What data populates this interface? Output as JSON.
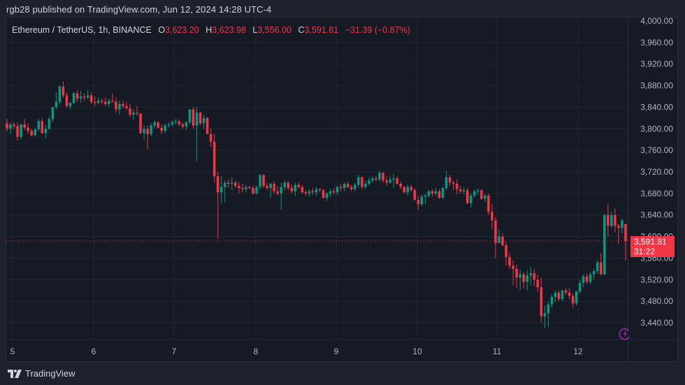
{
  "header": {
    "publisher_text": "rgb28 published on TradingView.com, Jun 12, 2024 14:28 UTC-4"
  },
  "legend": {
    "symbol": "Ethereum / TetherUS, 1h, BINANCE",
    "open_label": "O",
    "open": "3,623.20",
    "high_label": "H",
    "high": "3,623.98",
    "low_label": "L",
    "low": "3,556.00",
    "close_label": "C",
    "close": "3,591.81",
    "change": "−31.39 (−0.87%)"
  },
  "price_tag": {
    "price": "3,591.81",
    "countdown": "31:22"
  },
  "footer": {
    "brand": "TradingView"
  },
  "colors": {
    "up": "#089981",
    "down": "#f23645",
    "background": "#161a25",
    "grid": "#242733",
    "axis_text": "#b2b5be",
    "price_line": "#f23645",
    "bolt": "#9c27b0"
  },
  "chart_data": {
    "type": "candlestick",
    "title": "Ethereum / TetherUS, 1h, BINANCE",
    "xlabel": "",
    "ylabel": "",
    "ylim": [
      3420,
      4000
    ],
    "y_ticks": [
      4000,
      3960,
      3920,
      3880,
      3840,
      3800,
      3760,
      3720,
      3680,
      3640,
      3600,
      3560,
      3520,
      3480,
      3440
    ],
    "y_tick_labels": [
      "4,000.00",
      "3,960.00",
      "3,920.00",
      "3,880.00",
      "3,840.00",
      "3,800.00",
      "3,760.00",
      "3,720.00",
      "3,680.00",
      "3,640.00",
      "3,600.00",
      "3,560.00",
      "3,520.00",
      "3,480.00",
      "3,440.00"
    ],
    "x_tick_labels": [
      "5",
      "6",
      "7",
      "8",
      "9",
      "10",
      "11",
      "12"
    ],
    "last_price": 3591.81,
    "grid": true,
    "candles": [
      [
        3810,
        3818,
        3795,
        3800
      ],
      [
        3800,
        3812,
        3790,
        3808
      ],
      [
        3808,
        3812,
        3800,
        3805
      ],
      [
        3805,
        3812,
        3778,
        3785
      ],
      [
        3785,
        3810,
        3780,
        3808
      ],
      [
        3808,
        3818,
        3798,
        3802
      ],
      [
        3802,
        3810,
        3790,
        3796
      ],
      [
        3796,
        3800,
        3786,
        3788
      ],
      [
        3788,
        3802,
        3785,
        3799
      ],
      [
        3799,
        3818,
        3795,
        3814
      ],
      [
        3814,
        3820,
        3790,
        3792
      ],
      [
        3792,
        3808,
        3782,
        3800
      ],
      [
        3800,
        3822,
        3798,
        3818
      ],
      [
        3818,
        3840,
        3812,
        3840
      ],
      [
        3840,
        3868,
        3836,
        3850
      ],
      [
        3850,
        3880,
        3845,
        3878
      ],
      [
        3878,
        3888,
        3858,
        3862
      ],
      [
        3862,
        3868,
        3840,
        3842
      ],
      [
        3842,
        3850,
        3836,
        3848
      ],
      [
        3848,
        3868,
        3845,
        3866
      ],
      [
        3866,
        3872,
        3850,
        3856
      ],
      [
        3856,
        3870,
        3848,
        3860
      ],
      [
        3860,
        3866,
        3852,
        3858
      ],
      [
        3858,
        3872,
        3854,
        3862
      ],
      [
        3862,
        3868,
        3846,
        3850
      ],
      [
        3850,
        3860,
        3842,
        3848
      ],
      [
        3848,
        3858,
        3845,
        3852
      ],
      [
        3852,
        3856,
        3846,
        3850
      ],
      [
        3850,
        3858,
        3842,
        3846
      ],
      [
        3846,
        3856,
        3840,
        3852
      ],
      [
        3852,
        3866,
        3848,
        3850
      ],
      [
        3850,
        3858,
        3830,
        3836
      ],
      [
        3836,
        3852,
        3826,
        3846
      ],
      [
        3846,
        3852,
        3838,
        3842
      ],
      [
        3842,
        3850,
        3835,
        3838
      ],
      [
        3838,
        3846,
        3822,
        3826
      ],
      [
        3826,
        3836,
        3816,
        3830
      ],
      [
        3830,
        3842,
        3824,
        3828
      ],
      [
        3828,
        3830,
        3790,
        3792
      ],
      [
        3792,
        3806,
        3780,
        3800
      ],
      [
        3800,
        3806,
        3762,
        3790
      ],
      [
        3790,
        3810,
        3786,
        3806
      ],
      [
        3806,
        3816,
        3800,
        3812
      ],
      [
        3812,
        3814,
        3800,
        3802
      ],
      [
        3802,
        3808,
        3790,
        3796
      ],
      [
        3796,
        3810,
        3792,
        3806
      ],
      [
        3806,
        3812,
        3802,
        3808
      ],
      [
        3808,
        3816,
        3804,
        3812
      ],
      [
        3812,
        3818,
        3808,
        3814
      ],
      [
        3814,
        3818,
        3806,
        3808
      ],
      [
        3808,
        3812,
        3800,
        3804
      ],
      [
        3804,
        3814,
        3798,
        3812
      ],
      [
        3812,
        3830,
        3808,
        3836
      ],
      [
        3836,
        3840,
        3800,
        3806
      ],
      [
        3806,
        3840,
        3740,
        3830
      ],
      [
        3830,
        3832,
        3806,
        3810
      ],
      [
        3810,
        3826,
        3800,
        3820
      ],
      [
        3820,
        3822,
        3790,
        3790
      ],
      [
        3790,
        3800,
        3766,
        3776
      ],
      [
        3776,
        3790,
        3700,
        3712
      ],
      [
        3712,
        3720,
        3596,
        3682
      ],
      [
        3682,
        3712,
        3662,
        3692
      ],
      [
        3692,
        3704,
        3664,
        3700
      ],
      [
        3700,
        3706,
        3690,
        3698
      ],
      [
        3698,
        3710,
        3686,
        3700
      ],
      [
        3700,
        3704,
        3690,
        3694
      ],
      [
        3694,
        3702,
        3680,
        3690
      ],
      [
        3690,
        3698,
        3682,
        3688
      ],
      [
        3688,
        3696,
        3682,
        3692
      ],
      [
        3692,
        3694,
        3688,
        3690
      ],
      [
        3690,
        3694,
        3678,
        3680
      ],
      [
        3680,
        3694,
        3678,
        3692
      ],
      [
        3692,
        3716,
        3688,
        3714
      ],
      [
        3714,
        3716,
        3690,
        3694
      ],
      [
        3694,
        3700,
        3686,
        3690
      ],
      [
        3690,
        3700,
        3672,
        3698
      ],
      [
        3698,
        3702,
        3680,
        3684
      ],
      [
        3684,
        3694,
        3676,
        3680
      ],
      [
        3680,
        3700,
        3650,
        3692
      ],
      [
        3692,
        3704,
        3686,
        3700
      ],
      [
        3700,
        3702,
        3686,
        3690
      ],
      [
        3690,
        3696,
        3680,
        3684
      ],
      [
        3684,
        3700,
        3676,
        3696
      ],
      [
        3696,
        3700,
        3688,
        3692
      ],
      [
        3692,
        3696,
        3680,
        3682
      ],
      [
        3682,
        3686,
        3676,
        3680
      ],
      [
        3680,
        3688,
        3674,
        3684
      ],
      [
        3684,
        3690,
        3678,
        3682
      ],
      [
        3682,
        3692,
        3676,
        3688
      ],
      [
        3688,
        3690,
        3682,
        3686
      ],
      [
        3686,
        3688,
        3670,
        3672
      ],
      [
        3672,
        3682,
        3666,
        3680
      ],
      [
        3680,
        3688,
        3674,
        3684
      ],
      [
        3684,
        3690,
        3678,
        3682
      ],
      [
        3682,
        3694,
        3678,
        3692
      ],
      [
        3692,
        3698,
        3684,
        3690
      ],
      [
        3690,
        3700,
        3684,
        3698
      ],
      [
        3698,
        3702,
        3690,
        3692
      ],
      [
        3692,
        3696,
        3684,
        3688
      ],
      [
        3688,
        3700,
        3684,
        3696
      ],
      [
        3696,
        3714,
        3690,
        3710
      ],
      [
        3710,
        3712,
        3686,
        3692
      ],
      [
        3692,
        3704,
        3688,
        3698
      ],
      [
        3698,
        3710,
        3694,
        3704
      ],
      [
        3704,
        3712,
        3700,
        3708
      ],
      [
        3708,
        3712,
        3702,
        3706
      ],
      [
        3706,
        3722,
        3702,
        3718
      ],
      [
        3718,
        3720,
        3700,
        3704
      ],
      [
        3704,
        3712,
        3694,
        3700
      ],
      [
        3700,
        3712,
        3698,
        3706
      ],
      [
        3706,
        3716,
        3690,
        3708
      ],
      [
        3708,
        3712,
        3696,
        3698
      ],
      [
        3698,
        3702,
        3688,
        3692
      ],
      [
        3692,
        3694,
        3680,
        3682
      ],
      [
        3682,
        3696,
        3676,
        3692
      ],
      [
        3692,
        3696,
        3684,
        3686
      ],
      [
        3686,
        3690,
        3666,
        3668
      ],
      [
        3668,
        3676,
        3650,
        3660
      ],
      [
        3660,
        3678,
        3656,
        3674
      ],
      [
        3674,
        3680,
        3660,
        3676
      ],
      [
        3676,
        3686,
        3672,
        3684
      ],
      [
        3684,
        3688,
        3674,
        3680
      ],
      [
        3680,
        3690,
        3676,
        3684
      ],
      [
        3684,
        3688,
        3670,
        3672
      ],
      [
        3672,
        3692,
        3670,
        3690
      ],
      [
        3690,
        3722,
        3686,
        3710
      ],
      [
        3710,
        3714,
        3694,
        3700
      ],
      [
        3700,
        3704,
        3686,
        3698
      ],
      [
        3698,
        3706,
        3678,
        3688
      ],
      [
        3688,
        3694,
        3680,
        3684
      ],
      [
        3684,
        3692,
        3678,
        3686
      ],
      [
        3686,
        3690,
        3660,
        3662
      ],
      [
        3662,
        3680,
        3654,
        3676
      ],
      [
        3676,
        3688,
        3672,
        3684
      ],
      [
        3684,
        3690,
        3678,
        3686
      ],
      [
        3686,
        3688,
        3668,
        3670
      ],
      [
        3670,
        3680,
        3664,
        3676
      ],
      [
        3676,
        3680,
        3640,
        3646
      ],
      [
        3646,
        3660,
        3614,
        3630
      ],
      [
        3630,
        3636,
        3560,
        3588
      ],
      [
        3588,
        3614,
        3590,
        3600
      ],
      [
        3600,
        3606,
        3582,
        3584
      ],
      [
        3584,
        3590,
        3546,
        3562
      ],
      [
        3562,
        3570,
        3540,
        3546
      ],
      [
        3546,
        3556,
        3510,
        3540
      ],
      [
        3540,
        3548,
        3504,
        3524
      ],
      [
        3524,
        3538,
        3500,
        3530
      ],
      [
        3530,
        3534,
        3504,
        3516
      ],
      [
        3516,
        3538,
        3500,
        3528
      ],
      [
        3528,
        3544,
        3510,
        3532
      ],
      [
        3532,
        3540,
        3508,
        3520
      ],
      [
        3520,
        3530,
        3498,
        3506
      ],
      [
        3506,
        3524,
        3440,
        3452
      ],
      [
        3452,
        3472,
        3430,
        3458
      ],
      [
        3458,
        3480,
        3432,
        3474
      ],
      [
        3474,
        3492,
        3468,
        3488
      ],
      [
        3488,
        3500,
        3478,
        3496
      ],
      [
        3496,
        3500,
        3480,
        3484
      ],
      [
        3484,
        3502,
        3480,
        3500
      ],
      [
        3500,
        3504,
        3492,
        3496
      ],
      [
        3496,
        3504,
        3484,
        3490
      ],
      [
        3490,
        3494,
        3468,
        3476
      ],
      [
        3476,
        3500,
        3472,
        3498
      ],
      [
        3498,
        3520,
        3494,
        3514
      ],
      [
        3514,
        3530,
        3506,
        3526
      ],
      [
        3526,
        3532,
        3512,
        3516
      ],
      [
        3516,
        3534,
        3512,
        3530
      ],
      [
        3530,
        3540,
        3520,
        3536
      ],
      [
        3536,
        3556,
        3530,
        3552
      ],
      [
        3552,
        3570,
        3528,
        3530
      ],
      [
        3530,
        3642,
        3528,
        3640
      ],
      [
        3640,
        3660,
        3600,
        3620
      ],
      [
        3620,
        3646,
        3616,
        3640
      ],
      [
        3640,
        3652,
        3608,
        3620
      ],
      [
        3620,
        3624,
        3586,
        3616
      ],
      [
        3616,
        3634,
        3606,
        3630
      ],
      [
        3623.2,
        3623.98,
        3556,
        3591.81
      ]
    ]
  }
}
